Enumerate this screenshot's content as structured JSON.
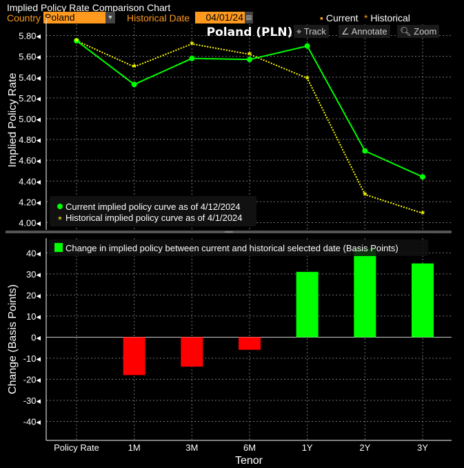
{
  "window": {
    "title": "Implied Policy Rate Comparison Chart"
  },
  "controls": {
    "country_label": "Country",
    "country_value": "Poland",
    "date_label": "Historical Date",
    "date_value": "04/01/24"
  },
  "top_legend": {
    "current": "Current",
    "historical": "Historical"
  },
  "toolbar": {
    "track": "Track",
    "annotate": "Annotate",
    "zoom": "Zoom"
  },
  "colors": {
    "current": "#00ff00",
    "historical": "#ffff00",
    "positive": "#00ff00",
    "negative": "#ff0000",
    "accent": "#ff9a1f"
  },
  "chart_data": [
    {
      "type": "line",
      "title": "Poland (PLN)",
      "ylabel": "Implied Policy Rate",
      "categories": [
        "Policy Rate",
        "1M",
        "3M",
        "6M",
        "1Y",
        "2Y",
        "3Y"
      ],
      "yticks": [
        "5.80",
        "5.60",
        "5.40",
        "5.20",
        "5.00",
        "4.80",
        "4.60",
        "4.40",
        "4.20",
        "4.00"
      ],
      "ylim": [
        3.93,
        5.91
      ],
      "grid": true,
      "legend_placement": "bottom-left",
      "series": [
        {
          "name": "Current implied policy curve as of 4/12/2024",
          "values": [
            5.75,
            5.33,
            5.58,
            5.57,
            5.7,
            4.69,
            4.44
          ]
        },
        {
          "name": "Historical implied policy curve as of 4/1/2024",
          "values": [
            5.75,
            5.5,
            5.72,
            5.62,
            5.39,
            4.27,
            4.09
          ]
        }
      ]
    },
    {
      "type": "bar",
      "xlabel": "Tenor",
      "ylabel": "Change (Basis Points)",
      "categories": [
        "Policy Rate",
        "1M",
        "3M",
        "6M",
        "1Y",
        "2Y",
        "3Y"
      ],
      "yticks": [
        "40",
        "30",
        "20",
        "10",
        "0",
        "-10",
        "-20",
        "-30",
        "-40"
      ],
      "ylim": [
        -49,
        47
      ],
      "grid": true,
      "legend_placement": "top",
      "series": [
        {
          "name": "Change in implied policy between current and historical selected date (Basis Points)",
          "values": [
            0,
            -18,
            -14,
            -6,
            31,
            42,
            35
          ]
        }
      ]
    }
  ]
}
